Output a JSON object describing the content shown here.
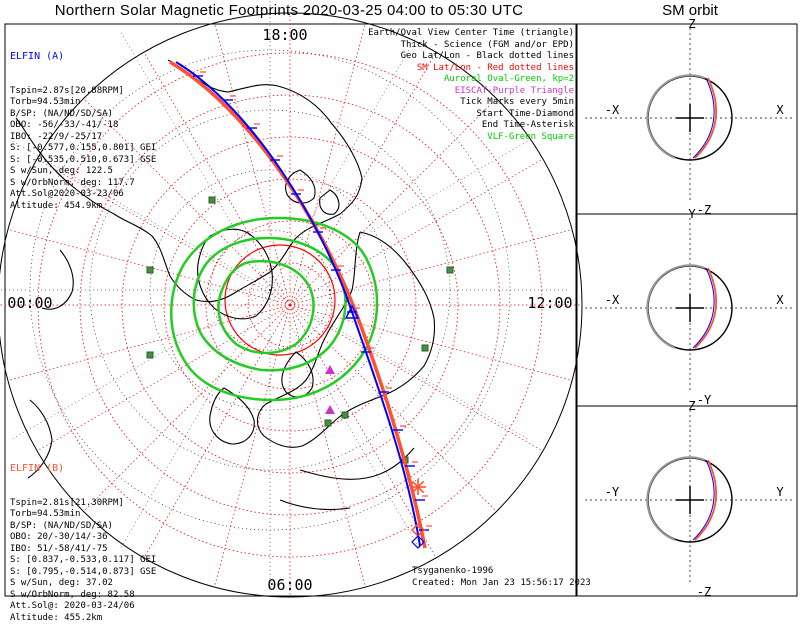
{
  "title": "Northern Solar Magnetic Footprints 2020-03-25 04:00 to 05:30 UTC",
  "sm_title": "SM orbit",
  "colors": {
    "elfin_a": "#0000ff",
    "elfin_b": "#ff5030",
    "geo_grid": "#000000",
    "sm_grid": "#ff0000",
    "oval": "#00cc00",
    "eiscat": "#cc33cc",
    "vlf": "#2e8b57"
  },
  "chart_data": {
    "type": "polar_map",
    "mlt_labels": {
      "top": "18:00",
      "left": "00:00",
      "right": "12:00",
      "bottom": "06:00"
    },
    "legend": [
      {
        "text": "Earth/Oval View Center Time (triangle)",
        "color": "#000000"
      },
      {
        "text": "Thick - Science (FGM and/or EPD)",
        "color": "#000000"
      },
      {
        "text": "Geo Lat/Lon - Black dotted lines",
        "color": "#000000"
      },
      {
        "text": "SM Lat/Lon - Red dotted lines",
        "color": "#ff0000"
      },
      {
        "text": "Auroral Oval-Green, kp=2",
        "color": "#00cc00"
      },
      {
        "text": "EISCAT-Purple Triangle",
        "color": "#cc33cc"
      },
      {
        "text": "Tick Marks every 5min",
        "color": "#000000"
      },
      {
        "text": "Start Time-Diamond",
        "color": "#000000"
      },
      {
        "text": "End Time-Asterisk",
        "color": "#000000"
      },
      {
        "text": "VLF-Green Square",
        "color": "#00cc00"
      }
    ],
    "elfin_a": {
      "name": "ELFIN (A)",
      "lines": [
        "Tspin=2.87s[20.88RPM]",
        "Torb=94.53min",
        "B/SP: (NA/ND/SD/SA)",
        "OBO: -56/-33/-41/-18",
        "IBO: -22/9/-25/17",
        "S: [-0.577,0.155,0.801] GEI",
        "S: [-0.535,0.510,0.673] GSE",
        "S w/Sun, deg: 122.5",
        "S w/OrbNorm, deg: 117.7",
        "Att.Sol@2020-03-23/06",
        "Altitude: 454.9km"
      ]
    },
    "elfin_b": {
      "name": "ELFIN (B)",
      "lines": [
        "Tspin=2.81s[21.30RPM]",
        "Torb=94.53min",
        "B/SP: (NA/ND/SD/SA)",
        "OBO: 20/-30/14/-36",
        "IBO: 51/-58/41/-75",
        "S: [0.837,-0.533,0.117] GEI",
        "S: [0.795,-0.514,0.873] GSE",
        "S w/Sun, deg: 37.02",
        "S w/OrbNorm, deg: 82.58",
        "Att.Sol@: 2020-03-24/06",
        "Altitude: 455.2km"
      ]
    },
    "credit": "Tsyganenko-1996",
    "created": "Created: Mon Jan 23 15:56:17 2023",
    "vlf_stations": [
      [
        212,
        200
      ],
      [
        150,
        270
      ],
      [
        450,
        270
      ],
      [
        150,
        355
      ],
      [
        425,
        348
      ],
      [
        345,
        415
      ],
      [
        405,
        460
      ],
      [
        328,
        423
      ]
    ],
    "sm_panels": [
      {
        "top": "Z",
        "bottom": "-Z",
        "left": "-X",
        "right": "X"
      },
      {
        "top": "Y",
        "bottom": "-Y",
        "left": "-X",
        "right": "X"
      },
      {
        "top": "Z",
        "bottom": "-Z",
        "left": "-Y",
        "right": "Y"
      }
    ]
  }
}
